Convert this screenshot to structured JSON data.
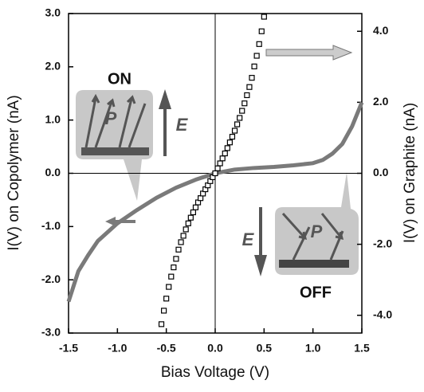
{
  "chart_data": {
    "type": "line",
    "xlabel": "Bias Voltage (V)",
    "ylabel": "I(V) on Copolymer  (nA)",
    "y2label": "I(V) on Graphite (nA)",
    "xlim": [
      -1.5,
      1.5
    ],
    "xticks": [
      {
        "value": -1.5,
        "label": "-1.5"
      },
      {
        "value": -1.0,
        "label": "-1.0"
      },
      {
        "value": -0.5,
        "label": "-0.5"
      },
      {
        "value": 0,
        "label": "0.0"
      },
      {
        "value": 0.5,
        "label": "0.5"
      },
      {
        "value": 1.0,
        "label": "1.0"
      },
      {
        "value": 1.5,
        "label": "1.5"
      }
    ],
    "ylim": [
      -3,
      3
    ],
    "yticks": [
      {
        "value": -3,
        "label": "-3.0"
      },
      {
        "value": -2,
        "label": "-2.0"
      },
      {
        "value": -1,
        "label": "-1.0"
      },
      {
        "value": 0,
        "label": "0.0"
      },
      {
        "value": 1,
        "label": "1.0"
      },
      {
        "value": 2,
        "label": "2.0"
      },
      {
        "value": 3,
        "label": "3.0"
      }
    ],
    "y2lim": [
      -4.5,
      4.5
    ],
    "y2ticks": [
      {
        "value": -4,
        "label": "-4.0"
      },
      {
        "value": -2,
        "label": "-2.0"
      },
      {
        "value": 0,
        "label": "0.0"
      },
      {
        "value": 2,
        "label": "2.0"
      },
      {
        "value": 4,
        "label": "4.0"
      }
    ],
    "series": [
      {
        "color": "#7a7a7a",
        "marker": "none",
        "x": [
          -1.5,
          -1.4,
          -1.3,
          -1.2,
          -1.0,
          -0.8,
          -0.6,
          -0.4,
          -0.2,
          0,
          0.2,
          0.4,
          0.6,
          0.8,
          1.0,
          1.1,
          1.2,
          1.3,
          1.4,
          1.5
        ],
        "values": [
          -2.41,
          -1.84,
          -1.54,
          -1.27,
          -0.94,
          -0.69,
          -0.46,
          -0.27,
          -0.12,
          0,
          0.07,
          0.1,
          0.12,
          0.15,
          0.19,
          0.25,
          0.37,
          0.55,
          0.88,
          1.33
        ]
      },
      {
        "color": "#000000",
        "marker": "square",
        "axis": "y2",
        "x": [
          -0.55,
          -0.525,
          -0.5,
          -0.475,
          -0.45,
          -0.425,
          -0.4,
          -0.375,
          -0.35,
          -0.325,
          -0.3,
          -0.275,
          -0.25,
          -0.225,
          -0.2,
          -0.175,
          -0.15,
          -0.125,
          -0.1,
          -0.075,
          -0.05,
          -0.025,
          0,
          0.025,
          0.05,
          0.075,
          0.1,
          0.125,
          0.15,
          0.175,
          0.2,
          0.225,
          0.25,
          0.275,
          0.3,
          0.325,
          0.35,
          0.375,
          0.4,
          0.425,
          0.45,
          0.475,
          0.5
        ],
        "values": [
          -4.25,
          -3.87,
          -3.53,
          -3.2,
          -2.91,
          -2.65,
          -2.41,
          -2.15,
          -1.94,
          -1.76,
          -1.58,
          -1.41,
          -1.25,
          -1.1,
          -0.96,
          -0.82,
          -0.7,
          -0.57,
          -0.45,
          -0.34,
          -0.22,
          -0.11,
          0,
          0.14,
          0.28,
          0.42,
          0.56,
          0.71,
          0.87,
          1.03,
          1.2,
          1.38,
          1.56,
          1.76,
          1.97,
          2.2,
          2.43,
          2.69,
          3.01,
          3.31,
          3.64,
          4.0,
          4.41
        ]
      }
    ],
    "annotations": [
      "ON",
      "P",
      "E",
      "OFF",
      "P",
      "E"
    ]
  }
}
